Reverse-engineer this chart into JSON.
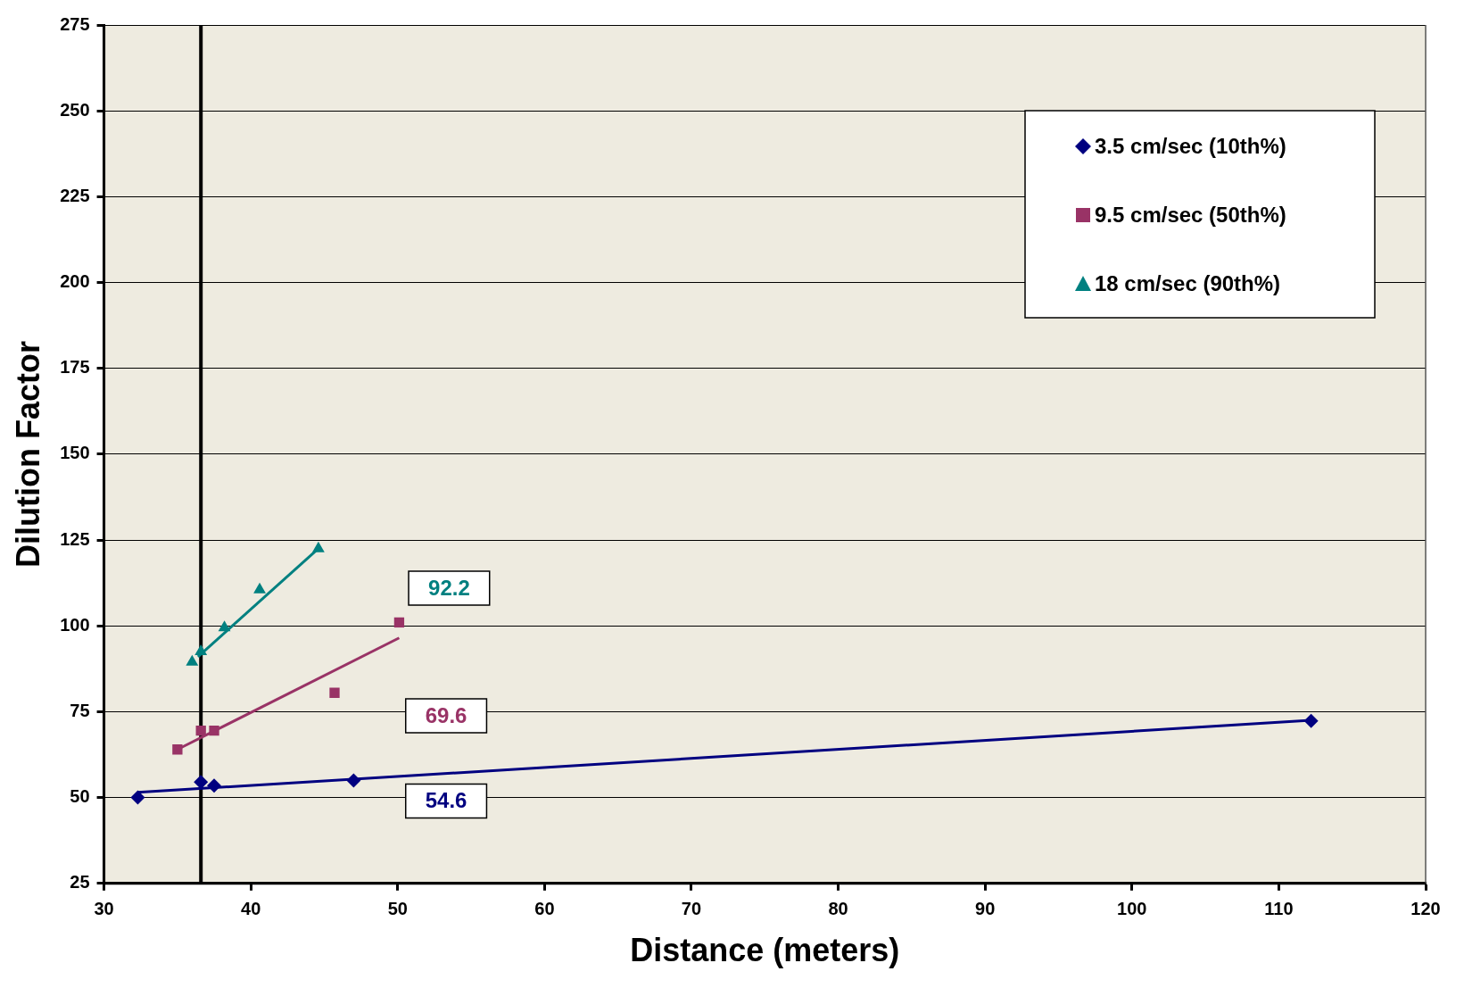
{
  "chart_data": {
    "type": "scatter",
    "xlabel": "Distance (meters)",
    "ylabel": "Dilution Factor",
    "xlim": [
      30,
      120
    ],
    "xticks": [
      30,
      40,
      50,
      60,
      70,
      80,
      90,
      100,
      110,
      120
    ],
    "ylim": [
      25,
      275
    ],
    "yticks": [
      25,
      50,
      75,
      100,
      125,
      150,
      175,
      200,
      225,
      250,
      275
    ],
    "grid": "y",
    "legend": "top right",
    "series": [
      {
        "name": "3.5 cm/sec (10th%)",
        "color": "#000080",
        "marker": "diamond",
        "x": [
          32.3,
          36.6,
          37.5,
          47,
          112.2
        ],
        "values": [
          50,
          54.5,
          53.5,
          55,
          72.3
        ]
      },
      {
        "name": "9.5 cm/sec (50th%)",
        "color": "#993366",
        "marker": "square",
        "x": [
          35,
          36.6,
          37.5,
          45.7,
          50.1
        ],
        "values": [
          64,
          69.5,
          69.5,
          80.5,
          101
        ]
      },
      {
        "name": "18 cm/sec (90th%)",
        "color": "#008080",
        "marker": "triangle",
        "x": [
          36,
          36.6,
          38.2,
          40.6,
          44.6
        ],
        "values": [
          89.5,
          92.5,
          99.5,
          110.5,
          122.5
        ]
      },
      {
        "type": "line",
        "color": "#000080",
        "marker": "none",
        "x": [
          32.3,
          112.2
        ],
        "values": [
          51.5,
          72.5
        ]
      },
      {
        "type": "line",
        "color": "#993366",
        "marker": "none",
        "x": [
          35,
          50.1
        ],
        "values": [
          64,
          96.5
        ]
      },
      {
        "type": "line",
        "color": "#008080",
        "marker": "none",
        "x": [
          36.4,
          44.6
        ],
        "values": [
          91,
          122.5
        ]
      }
    ],
    "ref_lines": [
      {
        "axis": "x",
        "value": 36.6,
        "color": "#000000"
      }
    ],
    "annotations": [
      "92.2",
      "69.6",
      "54.6"
    ]
  }
}
